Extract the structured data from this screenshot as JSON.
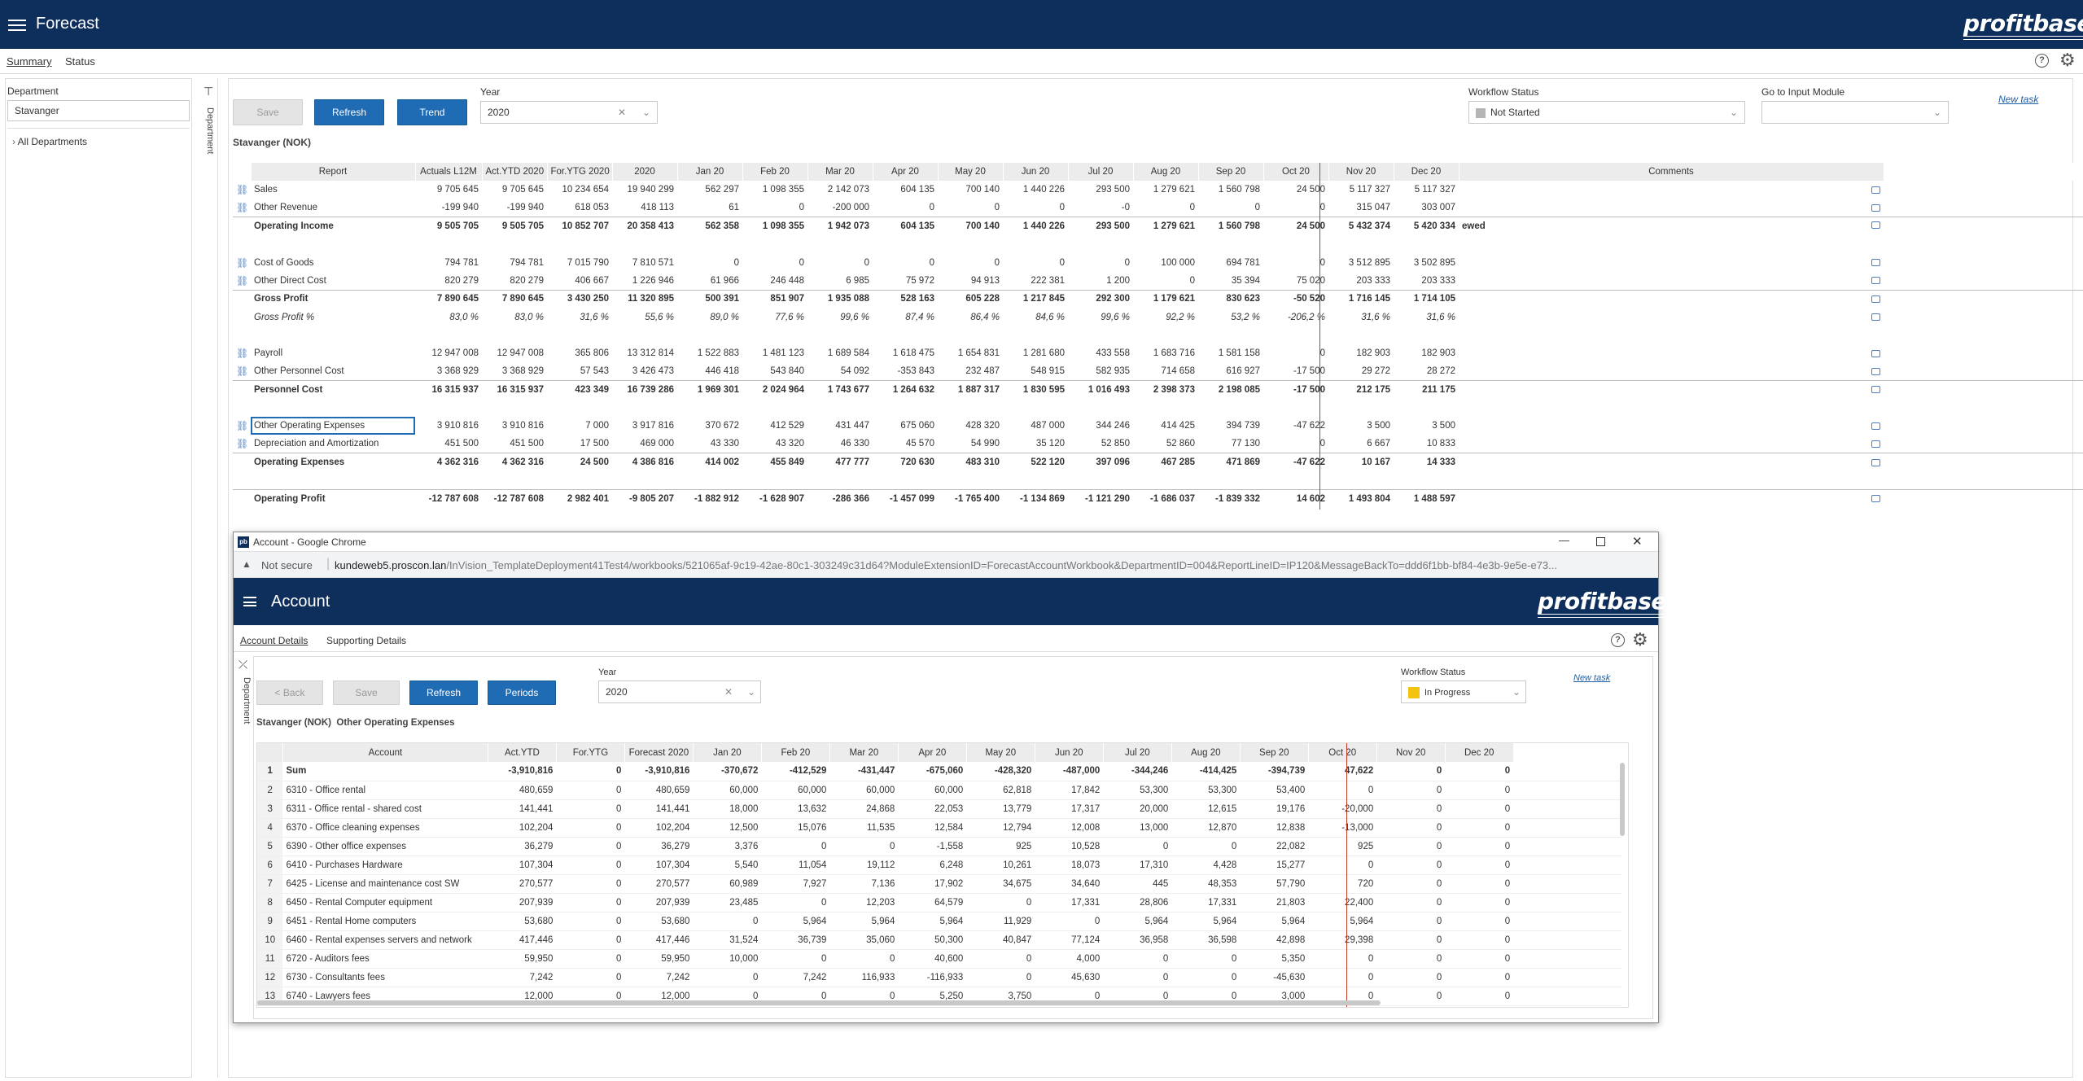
{
  "app": {
    "title": "Forecast",
    "logo": "profitbase"
  },
  "tabs": [
    "Summary",
    "Status"
  ],
  "filters": {
    "department_label": "Department",
    "department_value": "Stavanger",
    "tree_item": "All Departments",
    "side_label": "Department"
  },
  "toolbar": {
    "save": "Save",
    "refresh": "Refresh",
    "trend": "Trend",
    "year_label": "Year",
    "year_value": "2020",
    "workflow_label": "Workflow Status",
    "workflow_value": "Not Started",
    "goto_label": "Go to Input Module",
    "goto_value": "",
    "new_task": "New task"
  },
  "report": {
    "subtitle": "Stavanger (NOK)",
    "columns": [
      "Report",
      "Actuals L12M",
      "Act.YTD 2020",
      "For.YTG 2020",
      "2020",
      "Jan 20",
      "Feb 20",
      "Mar 20",
      "Apr 20",
      "May 20",
      "Jun 20",
      "Jul 20",
      "Aug 20",
      "Sep 20",
      "Oct 20",
      "Nov 20",
      "Dec 20",
      "Comments"
    ],
    "rows": [
      {
        "label": "Sales",
        "link": true,
        "style": "",
        "values": [
          "9 705 645",
          "9 705 645",
          "10 234 654",
          "19 940 299",
          "562 297",
          "1 098 355",
          "2 142 073",
          "604 135",
          "700 140",
          "1 440 226",
          "293 500",
          "1 279 621",
          "1 560 798",
          "24 500",
          "5 117 327",
          "5 117 327"
        ],
        "comment": ""
      },
      {
        "label": "Other Revenue",
        "link": true,
        "style": "",
        "values": [
          "-199 940",
          "-199 940",
          "618 053",
          "418 113",
          "61",
          "0",
          "-200 000",
          "0",
          "0",
          "0",
          "-0",
          "0",
          "0",
          "0",
          "315 047",
          "303 007"
        ],
        "comment": ""
      },
      {
        "label": "Operating Income",
        "link": false,
        "style": "b",
        "values": [
          "9 505 705",
          "9 505 705",
          "10 852 707",
          "20 358 413",
          "562 358",
          "1 098 355",
          "1 942 073",
          "604 135",
          "700 140",
          "1 440 226",
          "293 500",
          "1 279 621",
          "1 560 798",
          "24 500",
          "5 432 374",
          "5 420 334"
        ],
        "comment": "ewed"
      },
      {
        "label": "",
        "link": false,
        "style": "blank",
        "values": [
          "",
          "",
          "",
          "",
          "",
          "",
          "",
          "",
          "",
          "",
          "",
          "",
          "",
          "",
          "",
          ""
        ],
        "comment": ""
      },
      {
        "label": "Cost of Goods",
        "link": true,
        "style": "",
        "values": [
          "794 781",
          "794 781",
          "7 015 790",
          "7 810 571",
          "0",
          "0",
          "0",
          "0",
          "0",
          "0",
          "0",
          "100 000",
          "694 781",
          "0",
          "3 512 895",
          "3 502 895"
        ],
        "comment": ""
      },
      {
        "label": "Other Direct Cost",
        "link": true,
        "style": "",
        "values": [
          "820 279",
          "820 279",
          "406 667",
          "1 226 946",
          "61 966",
          "246 448",
          "6 985",
          "75 972",
          "94 913",
          "222 381",
          "1 200",
          "0",
          "35 394",
          "75 020",
          "203 333",
          "203 333"
        ],
        "comment": ""
      },
      {
        "label": "Gross Profit",
        "link": false,
        "style": "b",
        "values": [
          "7 890 645",
          "7 890 645",
          "3 430 250",
          "11 320 895",
          "500 391",
          "851 907",
          "1 935 088",
          "528 163",
          "605 228",
          "1 217 845",
          "292 300",
          "1 179 621",
          "830 623",
          "-50 520",
          "1 716 145",
          "1 714 105"
        ],
        "comment": ""
      },
      {
        "label": "Gross Profit %",
        "link": false,
        "style": "i",
        "values": [
          "83,0 %",
          "83,0 %",
          "31,6 %",
          "55,6 %",
          "89,0 %",
          "77,6 %",
          "99,6 %",
          "87,4 %",
          "86,4 %",
          "84,6 %",
          "99,6 %",
          "92,2 %",
          "53,2 %",
          "-206,2 %",
          "31,6 %",
          "31,6 %"
        ],
        "comment": ""
      },
      {
        "label": "",
        "link": false,
        "style": "blank",
        "values": [
          "",
          "",
          "",
          "",
          "",
          "",
          "",
          "",
          "",
          "",
          "",
          "",
          "",
          "",
          "",
          ""
        ],
        "comment": ""
      },
      {
        "label": "Payroll",
        "link": true,
        "style": "",
        "values": [
          "12 947 008",
          "12 947 008",
          "365 806",
          "13 312 814",
          "1 522 883",
          "1 481 123",
          "1 689 584",
          "1 618 475",
          "1 654 831",
          "1 281 680",
          "433 558",
          "1 683 716",
          "1 581 158",
          "0",
          "182 903",
          "182 903"
        ],
        "comment": ""
      },
      {
        "label": "Other Personnel Cost",
        "link": true,
        "style": "",
        "values": [
          "3 368 929",
          "3 368 929",
          "57 543",
          "3 426 473",
          "446 418",
          "543 840",
          "54 092",
          "-353 843",
          "232 487",
          "548 915",
          "582 935",
          "714 658",
          "616 927",
          "-17 500",
          "29 272",
          "28 272"
        ],
        "comment": ""
      },
      {
        "label": "Personnel Cost",
        "link": false,
        "style": "b",
        "values": [
          "16 315 937",
          "16 315 937",
          "423 349",
          "16 739 286",
          "1 969 301",
          "2 024 964",
          "1 743 677",
          "1 264 632",
          "1 887 317",
          "1 830 595",
          "1 016 493",
          "2 398 373",
          "2 198 085",
          "-17 500",
          "212 175",
          "211 175"
        ],
        "comment": ""
      },
      {
        "label": "",
        "link": false,
        "style": "blank",
        "values": [
          "",
          "",
          "",
          "",
          "",
          "",
          "",
          "",
          "",
          "",
          "",
          "",
          "",
          "",
          "",
          ""
        ],
        "comment": ""
      },
      {
        "label": "Other Operating Expenses",
        "link": true,
        "style": "sel",
        "values": [
          "3 910 816",
          "3 910 816",
          "7 000",
          "3 917 816",
          "370 672",
          "412 529",
          "431 447",
          "675 060",
          "428 320",
          "487 000",
          "344 246",
          "414 425",
          "394 739",
          "-47 622",
          "3 500",
          "3 500"
        ],
        "comment": ""
      },
      {
        "label": "Depreciation and Amortization",
        "link": true,
        "style": "",
        "values": [
          "451 500",
          "451 500",
          "17 500",
          "469 000",
          "43 330",
          "43 320",
          "46 330",
          "45 570",
          "54 990",
          "35 120",
          "52 850",
          "52 860",
          "77 130",
          "0",
          "6 667",
          "10 833"
        ],
        "comment": ""
      },
      {
        "label": "Operating Expenses",
        "link": false,
        "style": "b",
        "values": [
          "4 362 316",
          "4 362 316",
          "24 500",
          "4 386 816",
          "414 002",
          "455 849",
          "477 777",
          "720 630",
          "483 310",
          "522 120",
          "397 096",
          "467 285",
          "471 869",
          "-47 622",
          "10 167",
          "14 333"
        ],
        "comment": ""
      },
      {
        "label": "",
        "link": false,
        "style": "blank",
        "values": [
          "",
          "",
          "",
          "",
          "",
          "",
          "",
          "",
          "",
          "",
          "",
          "",
          "",
          "",
          "",
          ""
        ],
        "comment": ""
      },
      {
        "label": "Operating Profit",
        "link": false,
        "style": "b",
        "values": [
          "-12 787 608",
          "-12 787 608",
          "2 982 401",
          "-9 805 207",
          "-1 882 912",
          "-1 628 907",
          "-286 366",
          "-1 457 099",
          "-1 765 400",
          "-1 134 869",
          "-1 121 290",
          "-1 686 037",
          "-1 839 332",
          "14 602",
          "1 493 804",
          "1 488 597"
        ],
        "comment": ""
      }
    ]
  },
  "popup": {
    "window_title": "Account - Google Chrome",
    "not_secure": "Not secure",
    "url_host": "kundeweb5.proscon.lan",
    "url_path": "/InVision_TemplateDeployment41Test4/workbooks/521065af-9c19-42ae-80c1-303249c31d64?ModuleExtensionID=ForecastAccountWorkbook&DepartmentID=004&ReportLineID=IP120&MessageBackTo=ddd6f1bb-bf84-4e3b-9e5e-e73...",
    "title": "Account",
    "logo": "profitbase",
    "tabs": [
      "Account Details",
      "Supporting Details"
    ],
    "side_label": "Department",
    "back": "< Back",
    "save": "Save",
    "refresh": "Refresh",
    "periods": "Periods",
    "year_label": "Year",
    "year_value": "2020",
    "workflow_label": "Workflow Status",
    "workflow_value": "In Progress",
    "new_task": "New task",
    "subtitle": "Stavanger (NOK)  Other Operating Expenses",
    "columns": [
      "",
      "Account",
      "Act.YTD",
      "For.YTG",
      "Forecast 2020",
      "Jan 20",
      "Feb 20",
      "Mar 20",
      "Apr 20",
      "May 20",
      "Jun 20",
      "Jul 20",
      "Aug 20",
      "Sep 20",
      "Oct 20",
      "Nov 20",
      "Dec 20"
    ],
    "rows": [
      {
        "n": "1",
        "account": "Sum",
        "bold": true,
        "values": [
          "-3,910,816",
          "0",
          "-3,910,816",
          "-370,672",
          "-412,529",
          "-431,447",
          "-675,060",
          "-428,320",
          "-487,000",
          "-344,246",
          "-414,425",
          "-394,739",
          "47,622",
          "0",
          "0"
        ]
      },
      {
        "n": "2",
        "account": "6310 - Office rental",
        "bold": false,
        "values": [
          "480,659",
          "0",
          "480,659",
          "60,000",
          "60,000",
          "60,000",
          "60,000",
          "62,818",
          "17,842",
          "53,300",
          "53,300",
          "53,400",
          "0",
          "0",
          "0"
        ]
      },
      {
        "n": "3",
        "account": "6311 - Office rental - shared cost",
        "bold": false,
        "values": [
          "141,441",
          "0",
          "141,441",
          "18,000",
          "13,632",
          "24,868",
          "22,053",
          "13,779",
          "17,317",
          "20,000",
          "12,615",
          "19,176",
          "-20,000",
          "0",
          "0"
        ]
      },
      {
        "n": "4",
        "account": "6370 - Office cleaning expenses",
        "bold": false,
        "values": [
          "102,204",
          "0",
          "102,204",
          "12,500",
          "15,076",
          "11,535",
          "12,584",
          "12,794",
          "12,008",
          "13,000",
          "12,870",
          "12,838",
          "-13,000",
          "0",
          "0"
        ]
      },
      {
        "n": "5",
        "account": "6390 - Other office expenses",
        "bold": false,
        "values": [
          "36,279",
          "0",
          "36,279",
          "3,376",
          "0",
          "0",
          "-1,558",
          "925",
          "10,528",
          "0",
          "0",
          "22,082",
          "925",
          "0",
          "0"
        ]
      },
      {
        "n": "6",
        "account": "6410 - Purchases Hardware",
        "bold": false,
        "values": [
          "107,304",
          "0",
          "107,304",
          "5,540",
          "11,054",
          "19,112",
          "6,248",
          "10,261",
          "18,073",
          "17,310",
          "4,428",
          "15,277",
          "0",
          "0",
          "0"
        ]
      },
      {
        "n": "7",
        "account": "6425 - License and maintenance cost SW",
        "bold": false,
        "values": [
          "270,577",
          "0",
          "270,577",
          "60,989",
          "7,927",
          "7,136",
          "17,902",
          "34,675",
          "34,640",
          "445",
          "48,353",
          "57,790",
          "720",
          "0",
          "0"
        ]
      },
      {
        "n": "8",
        "account": "6450 - Rental Computer equipment",
        "bold": false,
        "values": [
          "207,939",
          "0",
          "207,939",
          "23,485",
          "0",
          "12,203",
          "64,579",
          "0",
          "17,331",
          "28,806",
          "17,331",
          "21,803",
          "22,400",
          "0",
          "0"
        ]
      },
      {
        "n": "9",
        "account": "6451 - Rental Home computers",
        "bold": false,
        "values": [
          "53,680",
          "0",
          "53,680",
          "0",
          "5,964",
          "5,964",
          "5,964",
          "11,929",
          "0",
          "5,964",
          "5,964",
          "5,964",
          "5,964",
          "0",
          "0"
        ]
      },
      {
        "n": "10",
        "account": "6460 - Rental expenses servers and network",
        "bold": false,
        "values": [
          "417,446",
          "0",
          "417,446",
          "31,524",
          "36,739",
          "35,060",
          "50,300",
          "40,847",
          "77,124",
          "36,958",
          "36,598",
          "42,898",
          "29,398",
          "0",
          "0"
        ]
      },
      {
        "n": "11",
        "account": "6720 - Auditors fees",
        "bold": false,
        "values": [
          "59,950",
          "0",
          "59,950",
          "10,000",
          "0",
          "0",
          "40,600",
          "0",
          "4,000",
          "0",
          "0",
          "5,350",
          "0",
          "0",
          "0"
        ]
      },
      {
        "n": "12",
        "account": "6730 - Consultants fees",
        "bold": false,
        "values": [
          "7,242",
          "0",
          "7,242",
          "0",
          "7,242",
          "116,933",
          "-116,933",
          "0",
          "45,630",
          "0",
          "0",
          "-45,630",
          "0",
          "0",
          "0"
        ]
      },
      {
        "n": "13",
        "account": "6740 - Lawyers fees",
        "bold": false,
        "values": [
          "12,000",
          "0",
          "12,000",
          "0",
          "0",
          "0",
          "5,250",
          "3,750",
          "0",
          "0",
          "0",
          "3,000",
          "0",
          "0",
          "0"
        ]
      }
    ]
  }
}
